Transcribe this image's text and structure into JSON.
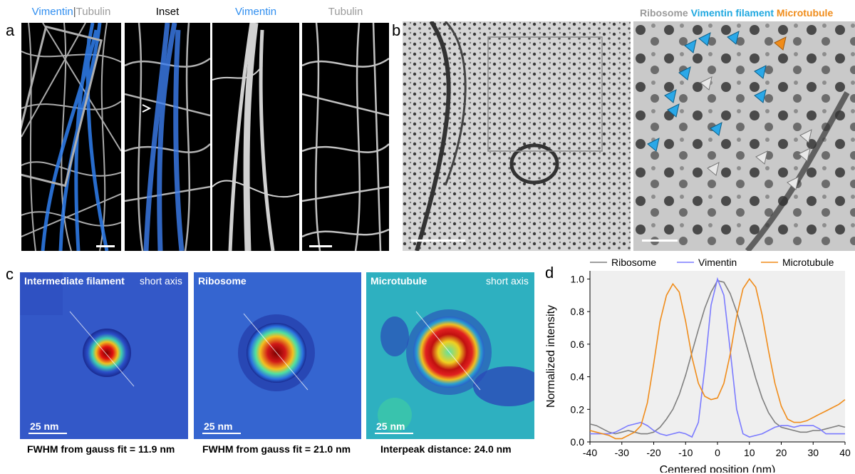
{
  "panel_a": {
    "label": "a",
    "titles": {
      "merge_vimentin": "Vimentin",
      "merge_sep": "|",
      "merge_tubulin": "Tubulin",
      "inset": "Inset",
      "vimentin": "Vimentin",
      "tubulin": "Tubulin"
    },
    "colors": {
      "vimentin": "#2f8ef0",
      "tubulin": "#9a9a9a"
    }
  },
  "panel_b": {
    "label": "b",
    "legend": {
      "ribosome": "Ribosome",
      "vimentin": "Vimentin filament",
      "microtubule": "Microtubule"
    },
    "colors": {
      "ribosome": "#9a9a9a",
      "vimentin": "#1fa8e0",
      "microtubule": "#f08c1a"
    }
  },
  "panel_c": {
    "label": "c",
    "maps": [
      {
        "title": "Intermediate filament",
        "tag": "short axis",
        "scale": "25 nm",
        "caption": "FWHM from gauss fit = 11.9 nm"
      },
      {
        "title": "Ribosome",
        "tag": "",
        "scale": "25 nm",
        "caption": "FWHM from gauss fit = 21.0 nm"
      },
      {
        "title": "Microtubule",
        "tag": "short axis",
        "scale": "25 nm",
        "caption": "Interpeak distance: 24.0 nm"
      }
    ]
  },
  "panel_d": {
    "label": "d"
  },
  "chart_data": {
    "type": "line",
    "title": "",
    "xlabel": "Centered position (nm)",
    "ylabel": "Normalized intensity",
    "xlim": [
      -40,
      40
    ],
    "ylim": [
      0,
      1.05
    ],
    "xticks": [
      -40,
      -30,
      -20,
      -10,
      0,
      10,
      20,
      30,
      40
    ],
    "yticks": [
      "0.0",
      "0.2",
      "0.4",
      "0.6",
      "0.8",
      "1.0"
    ],
    "legend_position": "top",
    "grid": false,
    "series": [
      {
        "name": "Ribosome",
        "color": "#7f7f7f",
        "x": [
          -40,
          -38,
          -36,
          -34,
          -32,
          -30,
          -28,
          -26,
          -24,
          -22,
          -20,
          -18,
          -16,
          -14,
          -12,
          -10,
          -8,
          -6,
          -4,
          -2,
          0,
          2,
          4,
          6,
          8,
          10,
          12,
          14,
          16,
          18,
          20,
          22,
          24,
          26,
          28,
          30,
          32,
          34,
          36,
          38,
          40
        ],
        "y": [
          0.11,
          0.1,
          0.08,
          0.06,
          0.05,
          0.06,
          0.07,
          0.06,
          0.05,
          0.05,
          0.06,
          0.09,
          0.14,
          0.2,
          0.29,
          0.41,
          0.55,
          0.69,
          0.82,
          0.92,
          0.99,
          0.98,
          0.91,
          0.8,
          0.67,
          0.53,
          0.39,
          0.27,
          0.18,
          0.12,
          0.09,
          0.08,
          0.07,
          0.06,
          0.06,
          0.07,
          0.07,
          0.08,
          0.09,
          0.1,
          0.09
        ]
      },
      {
        "name": "Vimentin",
        "color": "#7b7bff",
        "x": [
          -40,
          -38,
          -36,
          -34,
          -32,
          -30,
          -28,
          -26,
          -24,
          -22,
          -20,
          -18,
          -16,
          -14,
          -12,
          -10,
          -8,
          -6,
          -4,
          -2,
          0,
          2,
          4,
          6,
          8,
          10,
          12,
          14,
          16,
          18,
          20,
          22,
          24,
          26,
          28,
          30,
          32,
          34,
          36,
          38,
          40
        ],
        "y": [
          0.05,
          0.05,
          0.05,
          0.05,
          0.06,
          0.08,
          0.1,
          0.11,
          0.12,
          0.1,
          0.07,
          0.05,
          0.04,
          0.05,
          0.06,
          0.05,
          0.03,
          0.12,
          0.45,
          0.84,
          1.0,
          0.9,
          0.56,
          0.2,
          0.05,
          0.03,
          0.04,
          0.05,
          0.07,
          0.09,
          0.1,
          0.1,
          0.09,
          0.1,
          0.1,
          0.1,
          0.08,
          0.05,
          0.05,
          0.05,
          0.05
        ]
      },
      {
        "name": "Microtubule",
        "color": "#f08c1a",
        "x": [
          -40,
          -38,
          -36,
          -34,
          -32,
          -30,
          -28,
          -26,
          -24,
          -22,
          -20,
          -18,
          -16,
          -14,
          -12,
          -10,
          -8,
          -6,
          -4,
          -2,
          0,
          2,
          4,
          6,
          8,
          10,
          12,
          14,
          16,
          18,
          20,
          22,
          24,
          26,
          28,
          30,
          32,
          34,
          36,
          38,
          40
        ],
        "y": [
          0.07,
          0.06,
          0.05,
          0.04,
          0.02,
          0.02,
          0.04,
          0.06,
          0.1,
          0.24,
          0.48,
          0.74,
          0.9,
          0.97,
          0.92,
          0.74,
          0.52,
          0.36,
          0.28,
          0.26,
          0.27,
          0.36,
          0.54,
          0.77,
          0.94,
          1.0,
          0.95,
          0.78,
          0.56,
          0.36,
          0.22,
          0.14,
          0.12,
          0.12,
          0.13,
          0.15,
          0.17,
          0.19,
          0.21,
          0.23,
          0.26
        ]
      }
    ]
  }
}
